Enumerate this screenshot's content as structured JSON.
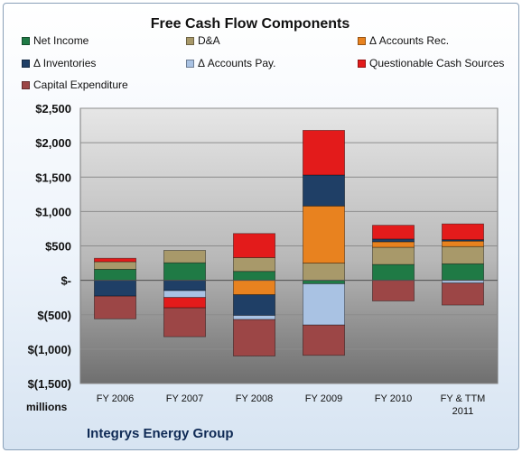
{
  "chart_data": {
    "type": "bar",
    "stacked": true,
    "title": "Free Cash Flow Components",
    "categories": [
      "FY 2006",
      "FY 2007",
      "FY 2008",
      "FY 2009",
      "FY 2010",
      "FY & TTM 2011"
    ],
    "ylim": [
      -1500,
      2500
    ],
    "yticks": [
      2500,
      2000,
      1500,
      1000,
      500,
      0,
      -500,
      -1000,
      -1500
    ],
    "ytick_labels": [
      "$2,500",
      "$2,000",
      "$1,500",
      "$1,000",
      "$500",
      "$-",
      "$(500)",
      "$(1,000)",
      "$(1,500)"
    ],
    "units": "millions",
    "grid": true,
    "legend_position": "top",
    "series": [
      {
        "name": "Net Income",
        "color": "#1f7a45",
        "values": [
          160,
          255,
          130,
          -50,
          230,
          240
        ]
      },
      {
        "name": "D&A",
        "color": "#a8996a",
        "values": [
          110,
          180,
          200,
          250,
          250,
          250
        ]
      },
      {
        "name": "Δ Accounts Rec.",
        "color": "#e8821f",
        "values": [
          0,
          0,
          -210,
          830,
          80,
          80
        ]
      },
      {
        "name": "Δ Inventories",
        "color": "#1f3f66",
        "values": [
          -230,
          -150,
          -300,
          450,
          40,
          20
        ]
      },
      {
        "name": "Δ Accounts Pay.",
        "color": "#a9c2e3",
        "values": [
          0,
          -100,
          -60,
          -600,
          0,
          -40
        ]
      },
      {
        "name": "Questionable Cash Sources",
        "color": "#e31b1b",
        "values": [
          50,
          -150,
          350,
          650,
          200,
          230
        ]
      },
      {
        "name": "Capital Expenditure",
        "color": "#9c4646",
        "values": [
          -330,
          -420,
          -530,
          -440,
          -300,
          -320
        ]
      }
    ]
  },
  "footer": {
    "units_label": "millions",
    "company": "Integrys Energy Group"
  }
}
